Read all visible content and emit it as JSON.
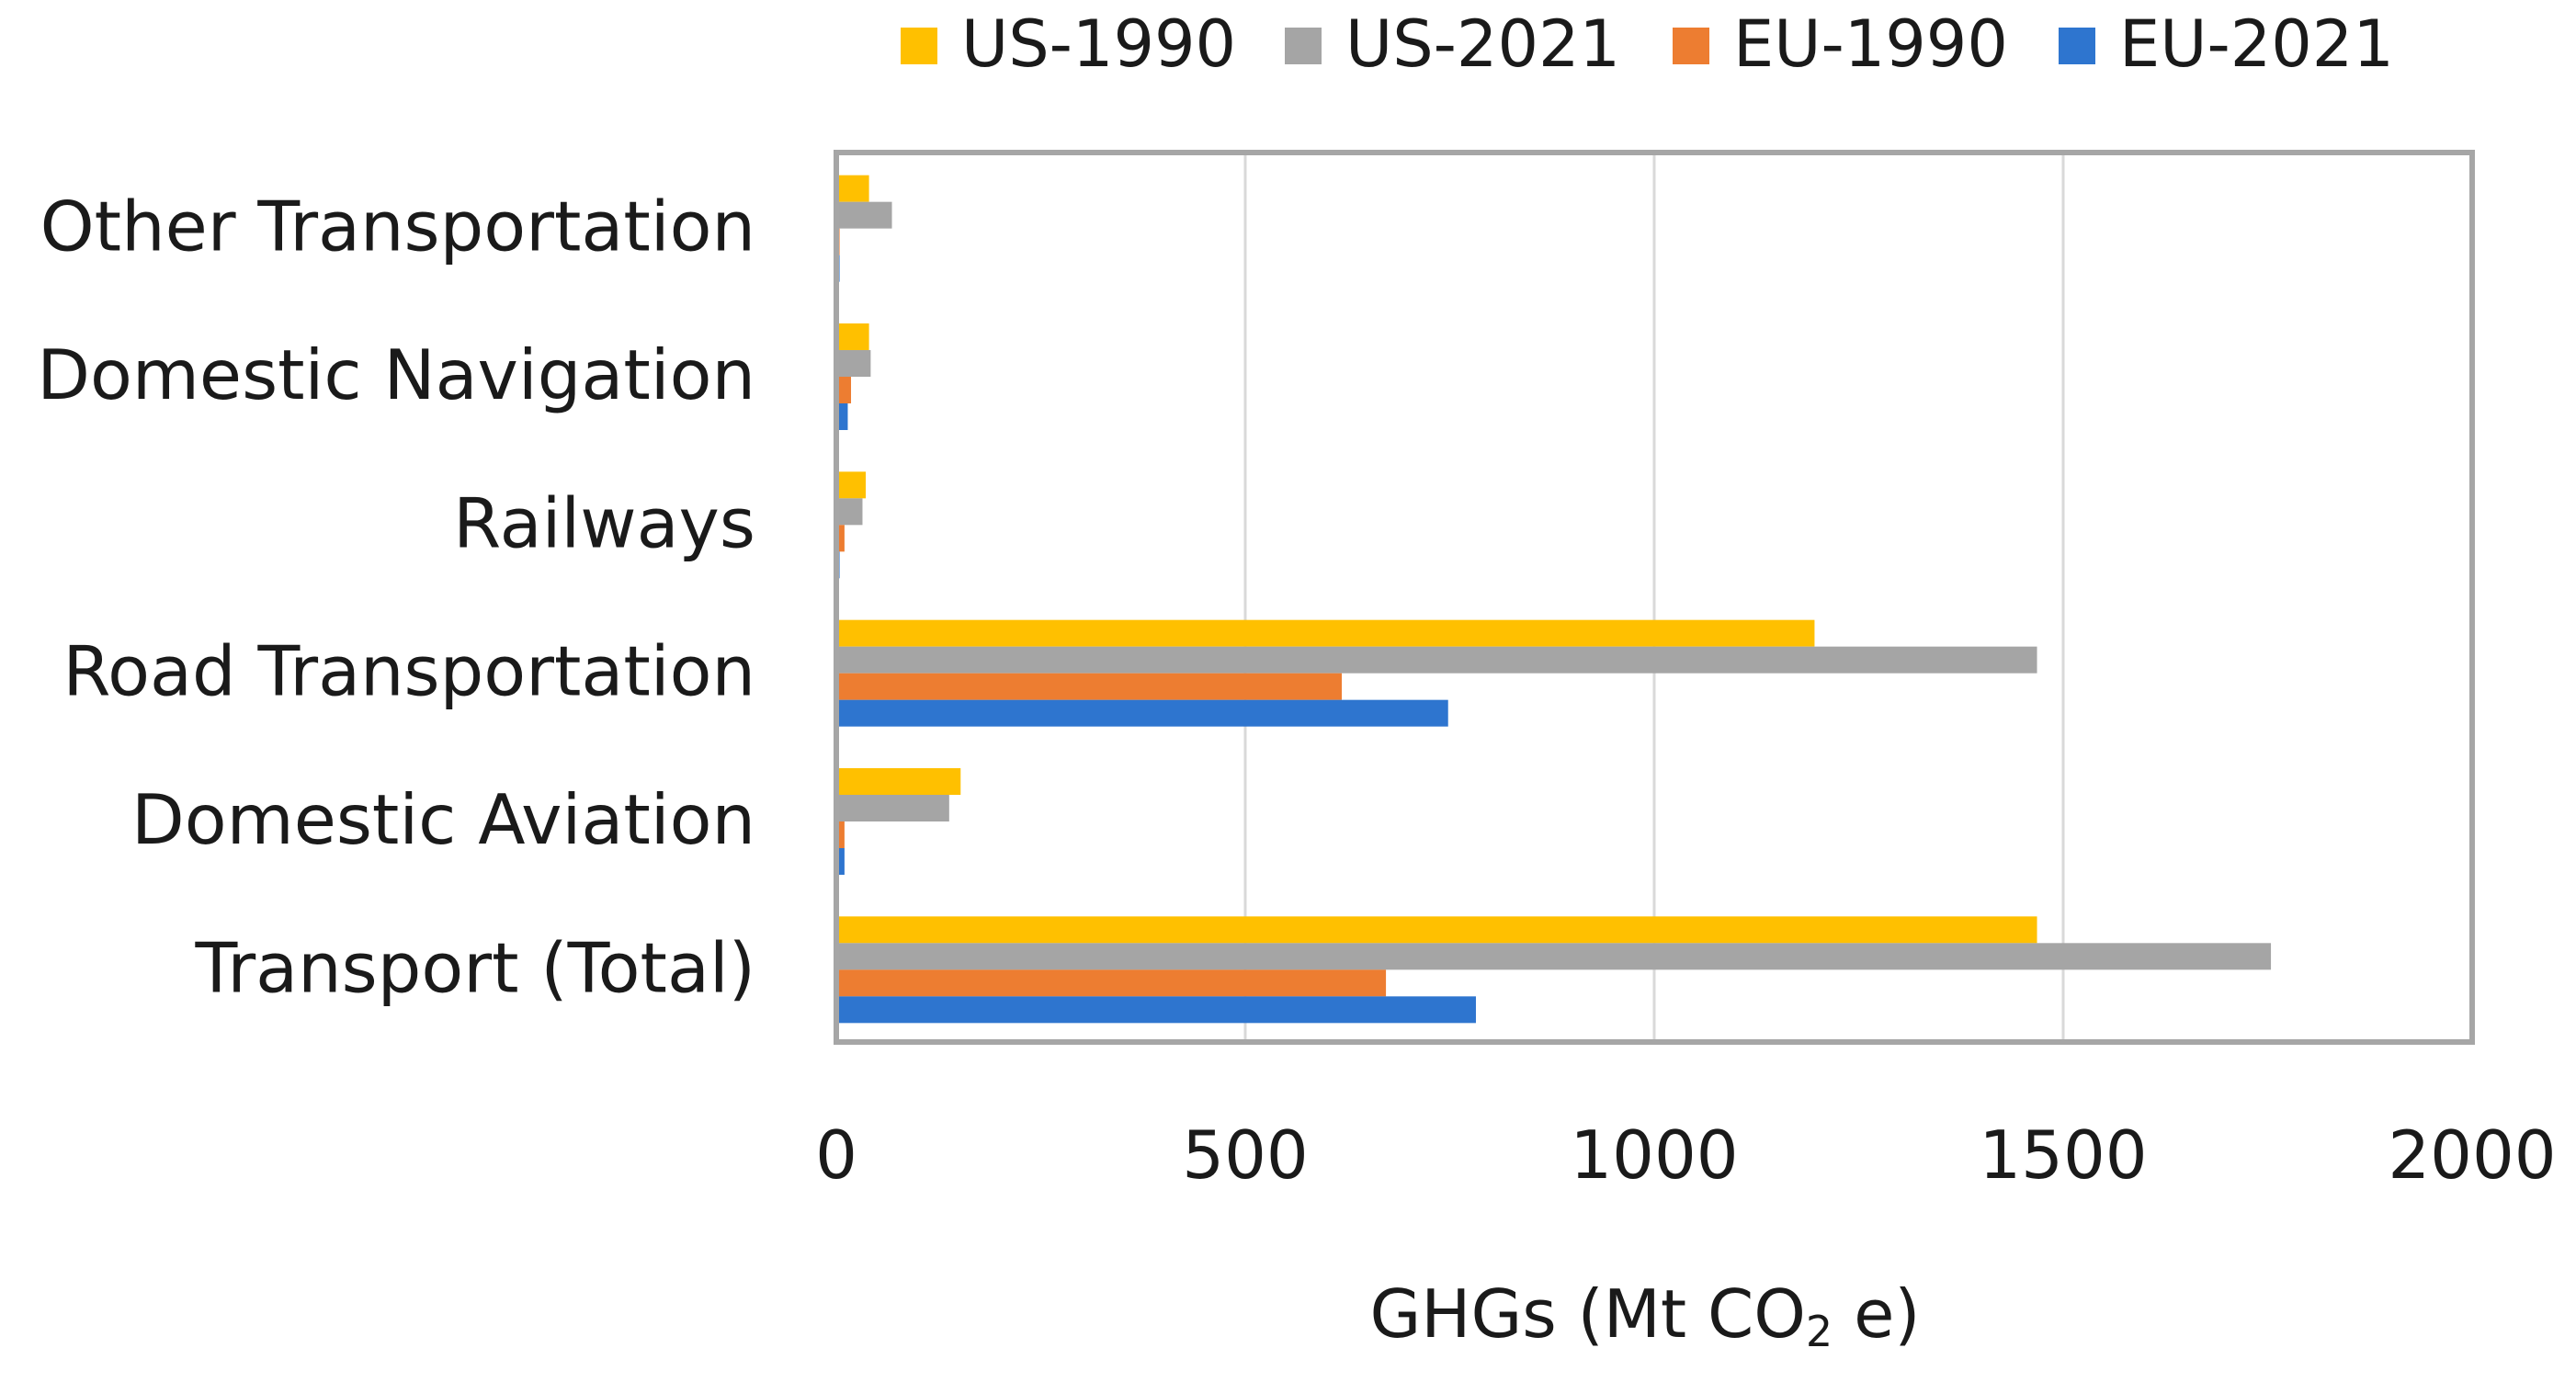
{
  "chart_data": {
    "type": "bar",
    "orientation": "horizontal",
    "title": "",
    "categories": [
      "Transport (Total)",
      "Domestic Aviation",
      "Road Transportation",
      "Railways",
      "Domestic Navigation",
      "Other Transportation"
    ],
    "series": [
      {
        "name": "US-1990",
        "color": "#FFC000",
        "values": [
          1468,
          152,
          1196,
          36,
          40,
          40
        ]
      },
      {
        "name": "US-2021",
        "color": "#A5A5A5",
        "values": [
          1754,
          138,
          1468,
          32,
          42,
          68
        ]
      },
      {
        "name": "EU-1990",
        "color": "#ED7D31",
        "values": [
          672,
          10,
          618,
          10,
          18,
          4
        ]
      },
      {
        "name": "EU-2021",
        "color": "#2E75CF",
        "values": [
          782,
          10,
          748,
          4,
          14,
          4
        ]
      }
    ],
    "xaxis": {
      "label": "GHGs (Mt CO",
      "label_subscript": "2",
      "label_suffix": " e)",
      "min": 0,
      "max": 2000,
      "ticks": [
        "0",
        "500",
        "1000",
        "1500",
        "2000"
      ],
      "gridlines": true
    },
    "legend_position": "top"
  }
}
